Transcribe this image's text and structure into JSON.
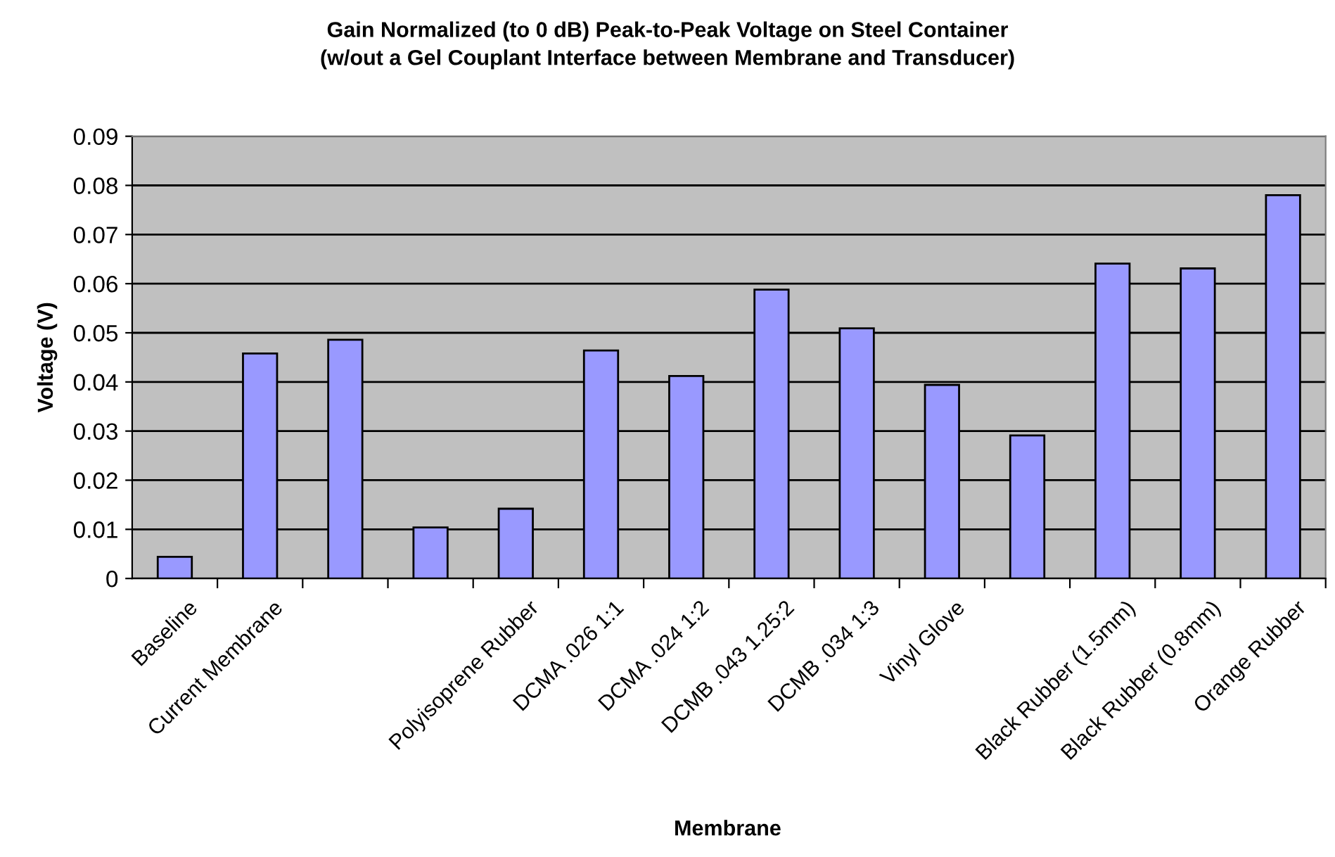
{
  "chart_data": {
    "type": "bar",
    "title": "Gain Normalized (to 0 dB) Peak-to-Peak Voltage on Steel Container\n(w/out a Gel Couplant Interface between Membrane and Transducer)",
    "xlabel": "Membrane",
    "ylabel": "Voltage (V)",
    "categories": [
      "Baseline",
      "Current Membrane",
      null,
      null,
      "Polyisoprene Rubber",
      "DCMA .026 1:1",
      "DCMA .024 1:2",
      "DCMB .043 1.25:2",
      "DCMB .034 1:3",
      "Vinyl Glove",
      null,
      "Black Rubber (1.5mm)",
      "Black Rubber (0.8mm)",
      "Orange Rubber"
    ],
    "values": [
      0.0044,
      0.0458,
      0.0486,
      0.0104,
      0.0142,
      0.0464,
      0.0412,
      0.0588,
      0.0509,
      0.0394,
      0.0291,
      0.0641,
      0.0631,
      0.078
    ],
    "color": "#9999ff",
    "ylim": [
      0,
      0.09
    ],
    "yticks": [
      0,
      0.01,
      0.02,
      0.03,
      0.04,
      0.05,
      0.06,
      0.07,
      0.08,
      0.09
    ],
    "grid": "y",
    "legend": false
  }
}
